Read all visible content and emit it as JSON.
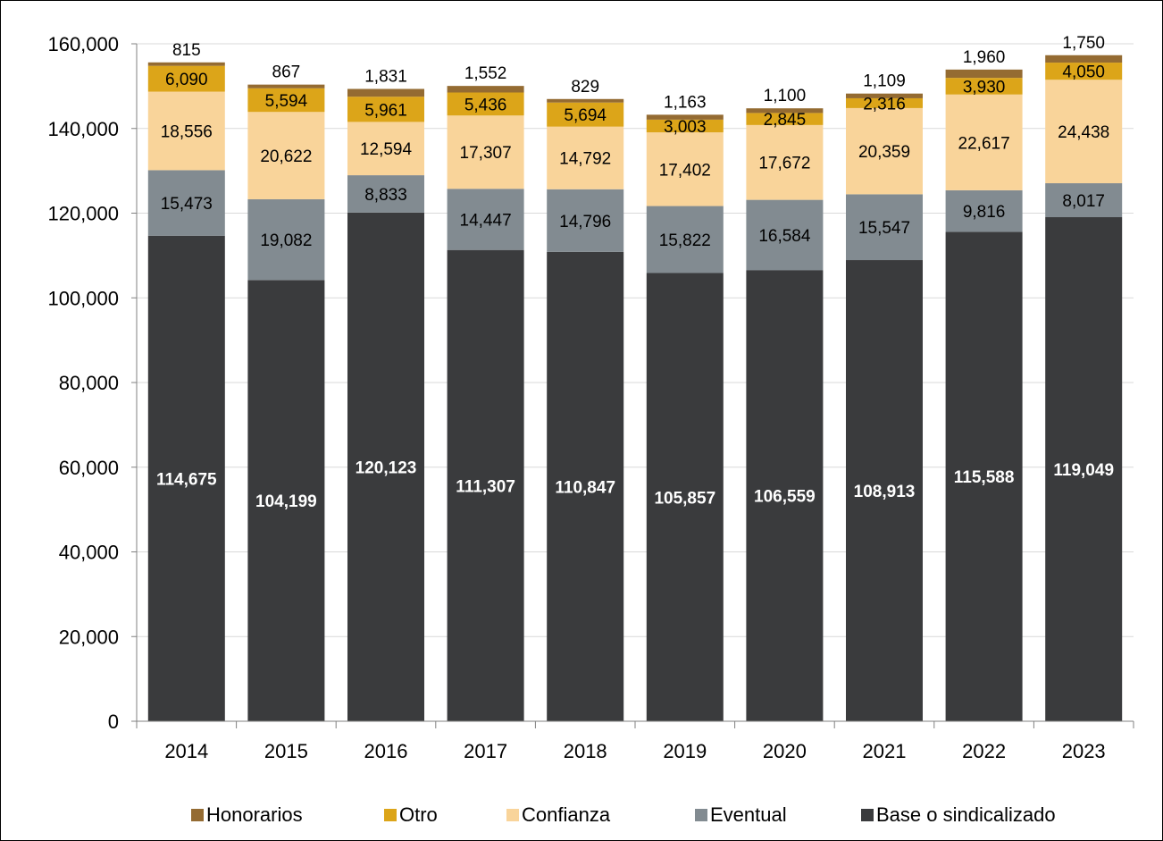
{
  "chart_data": {
    "type": "bar",
    "stacked": true,
    "title": "",
    "xlabel": "",
    "ylabel": "",
    "ylim": [
      0,
      160000
    ],
    "yticks": [
      0,
      20000,
      40000,
      60000,
      80000,
      100000,
      120000,
      140000,
      160000
    ],
    "ytick_labels": [
      "0",
      "20,000",
      "40,000",
      "60,000",
      "80,000",
      "100,000",
      "120,000",
      "140,000",
      "160,000"
    ],
    "grid": true,
    "legend_position": "bottom",
    "categories": [
      "2014",
      "2015",
      "2016",
      "2017",
      "2018",
      "2019",
      "2020",
      "2021",
      "2022",
      "2023"
    ],
    "series": [
      {
        "name": "Base o sindicalizado",
        "color": "#3a3b3d",
        "values": [
          114675,
          104199,
          120123,
          111307,
          110847,
          105857,
          106559,
          108913,
          115588,
          119049
        ],
        "labels": [
          "114,675",
          "104,199",
          "120,123",
          "111,307",
          "110,847",
          "105,857",
          "106,559",
          "108,913",
          "115,588",
          "119,049"
        ]
      },
      {
        "name": "Eventual",
        "color": "#828b91",
        "values": [
          15473,
          19082,
          8833,
          14447,
          14796,
          15822,
          16584,
          15547,
          9816,
          8017
        ],
        "labels": [
          "15,473",
          "19,082",
          "8,833",
          "14,447",
          "14,796",
          "15,822",
          "16,584",
          "15,547",
          "9,816",
          "8,017"
        ]
      },
      {
        "name": "Confianza",
        "color": "#f9d49a",
        "values": [
          18556,
          20622,
          12594,
          17307,
          14792,
          17402,
          17672,
          20359,
          22617,
          24438
        ],
        "labels": [
          "18,556",
          "20,622",
          "12,594",
          "17,307",
          "14,792",
          "17,402",
          "17,672",
          "20,359",
          "22,617",
          "24,438"
        ]
      },
      {
        "name": "Otro",
        "color": "#dca519",
        "values": [
          6090,
          5594,
          5961,
          5436,
          5694,
          3003,
          2845,
          2316,
          3930,
          4050
        ],
        "labels": [
          "6,090",
          "5,594",
          "5,961",
          "5,436",
          "5,694",
          "3,003",
          "2,845",
          "2,316",
          "3,930",
          "4,050"
        ]
      },
      {
        "name": "Honorarios",
        "color": "#946b32",
        "values": [
          815,
          867,
          1831,
          1552,
          829,
          1163,
          1100,
          1109,
          1960,
          1750
        ],
        "labels": [
          "815",
          "867",
          "1,831",
          "1,552",
          "829",
          "1,163",
          "1,100",
          "1,109",
          "1,960",
          "1,750"
        ]
      }
    ],
    "legend_order": [
      "Honorarios",
      "Otro",
      "Confianza",
      "Eventual",
      "Base o sindicalizado"
    ]
  }
}
